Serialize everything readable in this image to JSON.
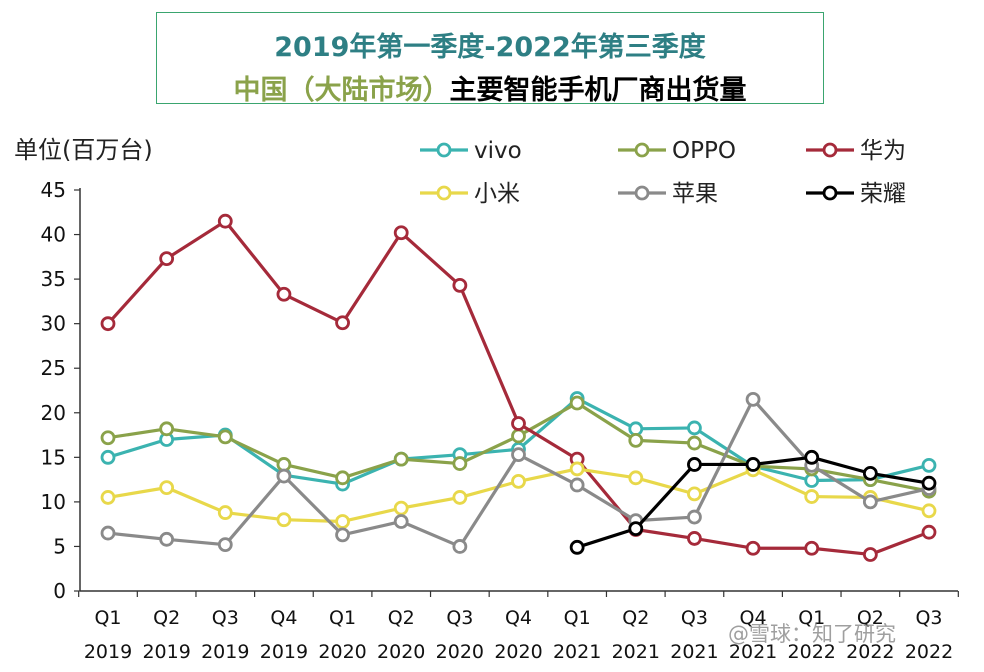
{
  "title": {
    "line1": "2019年第一季度-2022年第三季度",
    "line2_a": "中国（大陆市场）",
    "line2_b": "主要智能手机厂商出货量"
  },
  "unit_label": "单位(百万台)",
  "watermark": "@雪球：知了研究",
  "chart_data": {
    "type": "line",
    "title": "2019年第一季度-2022年第三季度 中国（大陆市场）主要智能手机厂商出货量",
    "ylabel": "单位(百万台)",
    "ylim": [
      0,
      45
    ],
    "yticks": [
      0,
      5,
      10,
      15,
      20,
      25,
      30,
      35,
      40,
      45
    ],
    "grid": false,
    "legend_position": "top",
    "categories": [
      {
        "q": "Q1",
        "y": "2019"
      },
      {
        "q": "Q2",
        "y": "2019"
      },
      {
        "q": "Q3",
        "y": "2019"
      },
      {
        "q": "Q4",
        "y": "2019"
      },
      {
        "q": "Q1",
        "y": "2020"
      },
      {
        "q": "Q2",
        "y": "2020"
      },
      {
        "q": "Q3",
        "y": "2020"
      },
      {
        "q": "Q4",
        "y": "2020"
      },
      {
        "q": "Q1",
        "y": "2021"
      },
      {
        "q": "Q2",
        "y": "2021"
      },
      {
        "q": "Q3",
        "y": "2021"
      },
      {
        "q": "Q4",
        "y": "2021"
      },
      {
        "q": "Q1",
        "y": "2022"
      },
      {
        "q": "Q2",
        "y": "2022"
      },
      {
        "q": "Q3",
        "y": "2022"
      }
    ],
    "series": [
      {
        "name": "vivo",
        "color": "#3bb3b0",
        "values": [
          15.0,
          17.0,
          17.5,
          13.0,
          12.0,
          14.8,
          15.3,
          15.9,
          21.6,
          18.2,
          18.3,
          14.0,
          12.4,
          12.5,
          14.1
        ]
      },
      {
        "name": "OPPO",
        "color": "#8aa24a",
        "values": [
          17.2,
          18.2,
          17.3,
          14.2,
          12.7,
          14.8,
          14.3,
          17.4,
          21.1,
          16.9,
          16.6,
          14.0,
          13.7,
          12.5,
          11.2
        ]
      },
      {
        "name": "华为",
        "color": "#a52a3a",
        "values": [
          30.0,
          37.3,
          41.5,
          33.3,
          30.1,
          40.2,
          34.3,
          18.8,
          14.8,
          6.9,
          5.9,
          4.8,
          4.8,
          4.1,
          6.6
        ]
      },
      {
        "name": "小米",
        "color": "#e8d84a",
        "values": [
          10.5,
          11.6,
          8.8,
          8.0,
          7.8,
          9.3,
          10.5,
          12.3,
          13.7,
          12.7,
          10.9,
          13.6,
          10.6,
          10.5,
          9.0
        ]
      },
      {
        "name": "苹果",
        "color": "#8a8a8a",
        "values": [
          6.5,
          5.8,
          5.2,
          12.9,
          6.3,
          7.8,
          5.0,
          15.3,
          11.9,
          7.9,
          8.3,
          21.5,
          14.1,
          10.0,
          11.5
        ]
      },
      {
        "name": "荣耀",
        "color": "#000000",
        "values": [
          null,
          null,
          null,
          null,
          null,
          null,
          null,
          null,
          4.9,
          7.0,
          14.2,
          14.2,
          15.0,
          13.2,
          12.1
        ]
      }
    ]
  }
}
